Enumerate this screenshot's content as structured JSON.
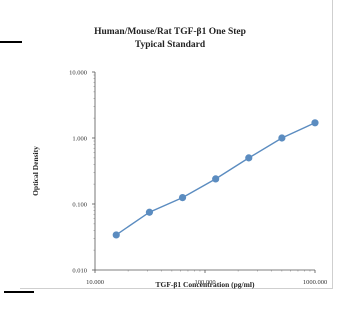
{
  "chart_data": {
    "type": "scatter",
    "title_line1": "Human/Mouse/Rat TGF-β1 One Step",
    "title_line2": "Typical Standard",
    "xlabel": "TGF-β1 Concentration (pg/ml)",
    "ylabel": "Optical Density",
    "x_scale": "log",
    "y_scale": "log",
    "xlim": [
      10,
      1000
    ],
    "ylim": [
      0.01,
      10
    ],
    "x_ticks": [
      "10.000",
      "100.000",
      "1000.000"
    ],
    "y_ticks": [
      "10.000",
      "1.000",
      "0.100",
      "0.010"
    ],
    "grid": false,
    "series": [
      {
        "color": "#5b8cc0",
        "x": [
          15.6,
          31.25,
          62.5,
          125,
          250,
          500,
          1000
        ],
        "y": [
          0.034,
          0.075,
          0.125,
          0.24,
          0.5,
          1.0,
          1.7
        ]
      }
    ]
  }
}
